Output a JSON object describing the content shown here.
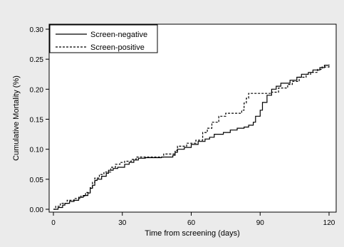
{
  "chart_data": {
    "type": "line",
    "xlabel": "Time from screening (days)",
    "ylabel": "Cumulative Mortality (%)",
    "xlim": [
      0,
      120
    ],
    "ylim": [
      0,
      0.3
    ],
    "x_ticks": [
      "0",
      "30",
      "60",
      "90",
      "120"
    ],
    "y_ticks": [
      "0.00",
      "0.05",
      "0.10",
      "0.15",
      "0.20",
      "0.25",
      "0.30"
    ],
    "grid": false,
    "legend_position": "top-left",
    "series": [
      {
        "name": "Screen-negative",
        "style": "solid",
        "points": [
          [
            0,
            0
          ],
          [
            2,
            0.003
          ],
          [
            4,
            0.007
          ],
          [
            5,
            0.01
          ],
          [
            7,
            0.013
          ],
          [
            9,
            0.015
          ],
          [
            11,
            0.02
          ],
          [
            13,
            0.023
          ],
          [
            15,
            0.027
          ],
          [
            16,
            0.035
          ],
          [
            17,
            0.04
          ],
          [
            18,
            0.048
          ],
          [
            19,
            0.05
          ],
          [
            21,
            0.055
          ],
          [
            23,
            0.06
          ],
          [
            24,
            0.065
          ],
          [
            26,
            0.068
          ],
          [
            28,
            0.07
          ],
          [
            31,
            0.075
          ],
          [
            33,
            0.078
          ],
          [
            35,
            0.082
          ],
          [
            37,
            0.085
          ],
          [
            40,
            0.086
          ],
          [
            47,
            0.087
          ],
          [
            52,
            0.09
          ],
          [
            53,
            0.095
          ],
          [
            54,
            0.1
          ],
          [
            57,
            0.103
          ],
          [
            60,
            0.108
          ],
          [
            63,
            0.113
          ],
          [
            66,
            0.117
          ],
          [
            68,
            0.12
          ],
          [
            70,
            0.125
          ],
          [
            74,
            0.128
          ],
          [
            77,
            0.132
          ],
          [
            80,
            0.135
          ],
          [
            83,
            0.137
          ],
          [
            85,
            0.14
          ],
          [
            87,
            0.145
          ],
          [
            88,
            0.155
          ],
          [
            90,
            0.165
          ],
          [
            91,
            0.178
          ],
          [
            93,
            0.19
          ],
          [
            95,
            0.2
          ],
          [
            97,
            0.205
          ],
          [
            99,
            0.21
          ],
          [
            103,
            0.215
          ],
          [
            106,
            0.22
          ],
          [
            108,
            0.225
          ],
          [
            111,
            0.228
          ],
          [
            113,
            0.232
          ],
          [
            116,
            0.236
          ],
          [
            118,
            0.24
          ],
          [
            120,
            0.241
          ]
        ]
      },
      {
        "name": "Screen-positive",
        "style": "dashed",
        "points": [
          [
            0,
            0
          ],
          [
            1,
            0.005
          ],
          [
            3,
            0.01
          ],
          [
            6,
            0.015
          ],
          [
            9,
            0.018
          ],
          [
            12,
            0.022
          ],
          [
            14,
            0.028
          ],
          [
            16,
            0.036
          ],
          [
            17,
            0.045
          ],
          [
            18,
            0.052
          ],
          [
            20,
            0.058
          ],
          [
            22,
            0.062
          ],
          [
            25,
            0.07
          ],
          [
            27,
            0.075
          ],
          [
            29,
            0.078
          ],
          [
            31,
            0.08
          ],
          [
            34,
            0.083
          ],
          [
            36,
            0.087
          ],
          [
            48,
            0.092
          ],
          [
            53,
            0.098
          ],
          [
            54,
            0.105
          ],
          [
            58,
            0.11
          ],
          [
            62,
            0.115
          ],
          [
            65,
            0.128
          ],
          [
            67,
            0.135
          ],
          [
            69,
            0.145
          ],
          [
            72,
            0.155
          ],
          [
            75,
            0.16
          ],
          [
            82,
            0.165
          ],
          [
            83,
            0.177
          ],
          [
            84,
            0.185
          ],
          [
            85,
            0.193
          ],
          [
            95,
            0.195
          ],
          [
            98,
            0.202
          ],
          [
            102,
            0.208
          ],
          [
            104,
            0.213
          ],
          [
            107,
            0.22
          ],
          [
            110,
            0.225
          ],
          [
            112,
            0.228
          ],
          [
            115,
            0.233
          ],
          [
            117,
            0.237
          ],
          [
            120,
            0.24
          ]
        ]
      }
    ]
  }
}
